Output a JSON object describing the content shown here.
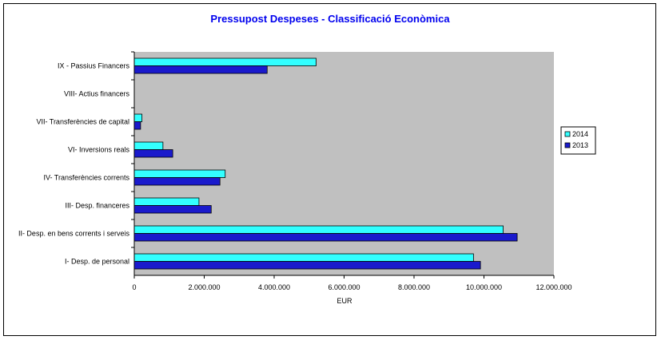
{
  "chart_data": {
    "type": "bar",
    "orientation": "horizontal",
    "title": "Pressupost Despeses - Classificació Econòmica",
    "xlabel": "EUR",
    "ylabel": "",
    "xlim": [
      0,
      12000000
    ],
    "ticks": [
      0,
      2000000,
      4000000,
      6000000,
      8000000,
      10000000,
      12000000
    ],
    "tick_labels": [
      "0",
      "2.000.000",
      "4.000.000",
      "6.000.000",
      "8.000.000",
      "10.000.000",
      "12.000.000"
    ],
    "categories": [
      "IX - Passius Financers",
      "VIII- Actius financers",
      "VII- Transferències de capital",
      "VI- Inversions reals",
      "IV- Transferències corrents",
      "III- Desp. financeres",
      "II- Desp. en bens corrents i serveis",
      "I- Desp. de personal"
    ],
    "series": [
      {
        "name": "2014",
        "color": "#33ffff",
        "values": [
          5200000,
          0,
          220000,
          820000,
          2600000,
          1850000,
          10550000,
          9700000
        ]
      },
      {
        "name": "2013",
        "color": "#1a1acc",
        "values": [
          3800000,
          0,
          180000,
          1100000,
          2450000,
          2200000,
          10950000,
          9900000
        ]
      }
    ],
    "legend_position": "right",
    "grid": false,
    "plot_background": "#c0c0c0"
  }
}
